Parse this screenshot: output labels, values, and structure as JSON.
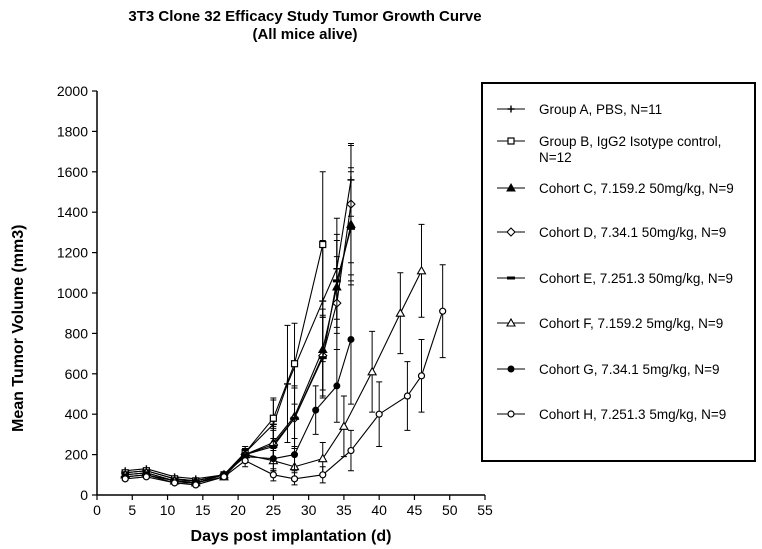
{
  "chart_data": {
    "type": "line",
    "title": "3T3 Clone 32 Efficacy Study Tumor Growth Curve",
    "subtitle": "(All mice alive)",
    "xlabel": "Days post implantation (d)",
    "ylabel": "Mean Tumor Volume (mm3)",
    "xlim": [
      0,
      55
    ],
    "ylim": [
      0,
      2000
    ],
    "xticks": [
      "0",
      "5",
      "10",
      "15",
      "20",
      "25",
      "30",
      "35",
      "40",
      "45",
      "50",
      "55"
    ],
    "yticks": [
      "0",
      "200",
      "400",
      "600",
      "800",
      "1000",
      "1200",
      "1400",
      "1600",
      "1800",
      "2000"
    ],
    "grid": false,
    "legend_position": "right",
    "series": [
      {
        "name": "Group A, PBS,  N=11",
        "marker": "plus",
        "x": [
          4,
          7,
          11,
          14,
          18,
          21,
          25,
          27,
          32,
          34,
          36
        ],
        "y": [
          120,
          130,
          90,
          80,
          100,
          210,
          350,
          550,
          960,
          1120,
          1560
        ],
        "err": [
          20,
          20,
          20,
          20,
          20,
          30,
          120,
          290,
          300,
          250,
          180
        ]
      },
      {
        "name": "Group B, IgG2 Isotype control,  N=12",
        "marker": "square",
        "x": [
          4,
          7,
          11,
          14,
          18,
          21,
          25,
          28,
          32
        ],
        "y": [
          110,
          120,
          80,
          70,
          100,
          210,
          380,
          650,
          1240
        ],
        "err": [
          20,
          20,
          20,
          20,
          20,
          30,
          100,
          200,
          360
        ]
      },
      {
        "name": "Cohort C, 7.159.2 50mg/kg, N=9",
        "marker": "filled-triangle",
        "x": [
          4,
          7,
          11,
          14,
          18,
          21,
          25,
          28,
          32,
          34,
          36
        ],
        "y": [
          100,
          110,
          70,
          70,
          100,
          200,
          260,
          390,
          720,
          1030,
          1340
        ],
        "err": [
          20,
          20,
          20,
          20,
          20,
          30,
          80,
          150,
          200,
          230,
          280
        ]
      },
      {
        "name": "Cohort D, 7.34.1 50mg/kg, N=9",
        "marker": "diamond",
        "x": [
          4,
          7,
          11,
          14,
          18,
          21,
          25,
          28,
          32,
          34,
          36
        ],
        "y": [
          90,
          100,
          70,
          60,
          100,
          200,
          250,
          380,
          690,
          950,
          1440
        ],
        "err": [
          20,
          20,
          20,
          20,
          20,
          30,
          80,
          150,
          200,
          230,
          290
        ]
      },
      {
        "name": "Cohort E, 7.251.3 50mg/kg, N=9",
        "marker": "dash",
        "x": [
          4,
          7,
          11,
          14,
          18,
          21,
          25,
          28,
          32,
          34,
          36
        ],
        "y": [
          110,
          120,
          80,
          70,
          100,
          200,
          240,
          380,
          680,
          1060,
          1320
        ],
        "err": [
          20,
          20,
          20,
          20,
          20,
          30,
          80,
          150,
          200,
          230,
          280
        ]
      },
      {
        "name": "Cohort F, 7.159.2 5mg/kg, N=9",
        "marker": "triangle",
        "x": [
          4,
          7,
          11,
          14,
          18,
          21,
          25,
          28,
          32,
          35,
          39,
          43,
          46
        ],
        "y": [
          100,
          110,
          70,
          60,
          90,
          200,
          170,
          140,
          180,
          340,
          610,
          900,
          1110
        ],
        "err": [
          20,
          20,
          20,
          20,
          20,
          30,
          50,
          60,
          80,
          150,
          200,
          200,
          230
        ]
      },
      {
        "name": "Cohort G, 7.34.1 5mg/kg, N=9",
        "marker": "filled-circle",
        "x": [
          4,
          7,
          11,
          14,
          18,
          21,
          25,
          28,
          31,
          34,
          36
        ],
        "y": [
          90,
          100,
          60,
          60,
          100,
          190,
          180,
          200,
          420,
          540,
          770
        ],
        "err": [
          20,
          20,
          20,
          20,
          20,
          30,
          60,
          80,
          120,
          180,
          320
        ]
      },
      {
        "name": "Cohort H, 7.251.3 5mg/kg, N=9",
        "marker": "open-circle",
        "x": [
          4,
          7,
          11,
          14,
          18,
          21,
          25,
          28,
          32,
          36,
          40,
          44,
          46,
          49
        ],
        "y": [
          80,
          90,
          60,
          50,
          90,
          170,
          100,
          80,
          100,
          220,
          400,
          490,
          590,
          910
        ],
        "err": [
          20,
          20,
          20,
          20,
          20,
          30,
          30,
          30,
          40,
          100,
          160,
          170,
          180,
          230
        ]
      }
    ]
  }
}
